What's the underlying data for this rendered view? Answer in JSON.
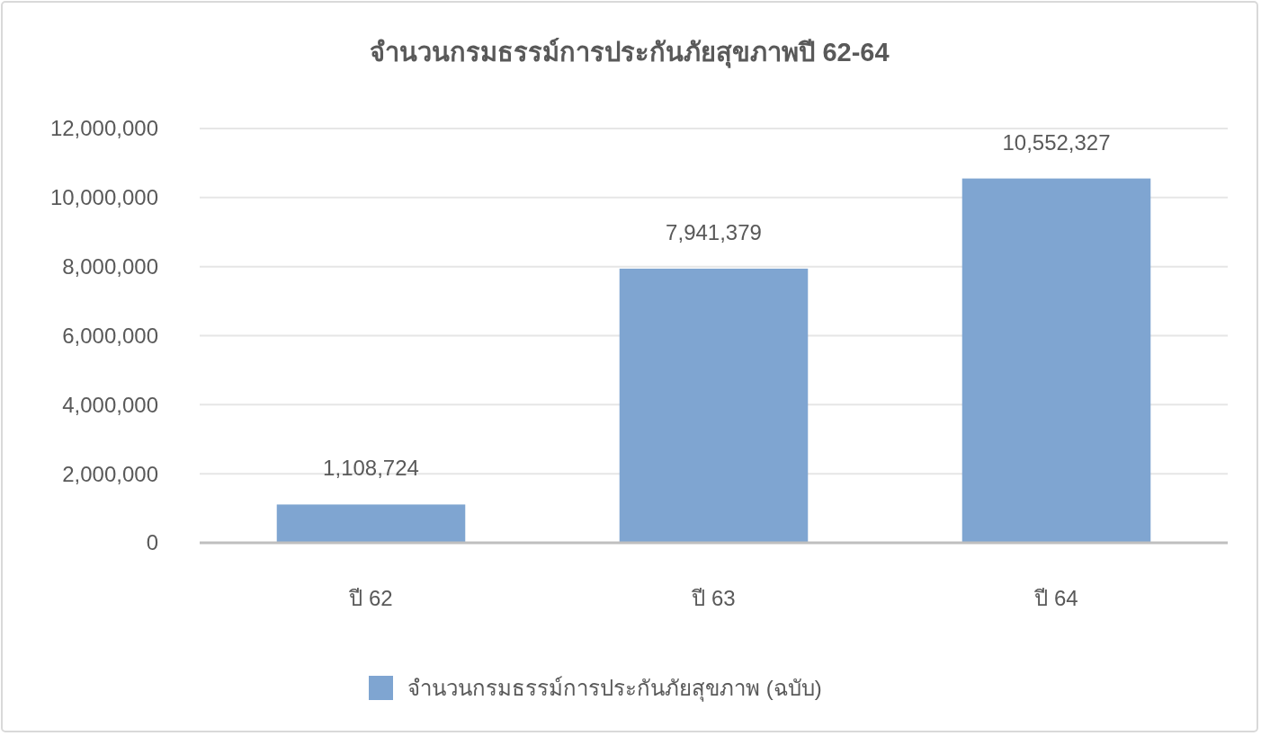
{
  "chart_data": {
    "type": "bar",
    "title": "จำนวนกรมธรรม์การประกันภัยสุขภาพปี 62-64",
    "categories": [
      "ปี 62",
      "ปี 63",
      "ปี 64"
    ],
    "series": [
      {
        "name": "จำนวนกรมธรรม์การประกันภัยสุขภาพ (ฉบับ)",
        "color": "#7fa5d1",
        "values": [
          1108724,
          7941379,
          10552327
        ],
        "value_labels": [
          "1,108,724",
          "7,941,379",
          "10,552,327"
        ]
      }
    ],
    "ylim": [
      0,
      12000000
    ],
    "yticks": [
      {
        "value": 0,
        "label": "0"
      },
      {
        "value": 2000000,
        "label": "2,000,000"
      },
      {
        "value": 4000000,
        "label": "4,000,000"
      },
      {
        "value": 6000000,
        "label": "6,000,000"
      },
      {
        "value": 8000000,
        "label": "8,000,000"
      },
      {
        "value": 10000000,
        "label": "10,000,000"
      },
      {
        "value": 12000000,
        "label": "12,000,000"
      }
    ],
    "grid": "y",
    "legend": "bottom"
  }
}
